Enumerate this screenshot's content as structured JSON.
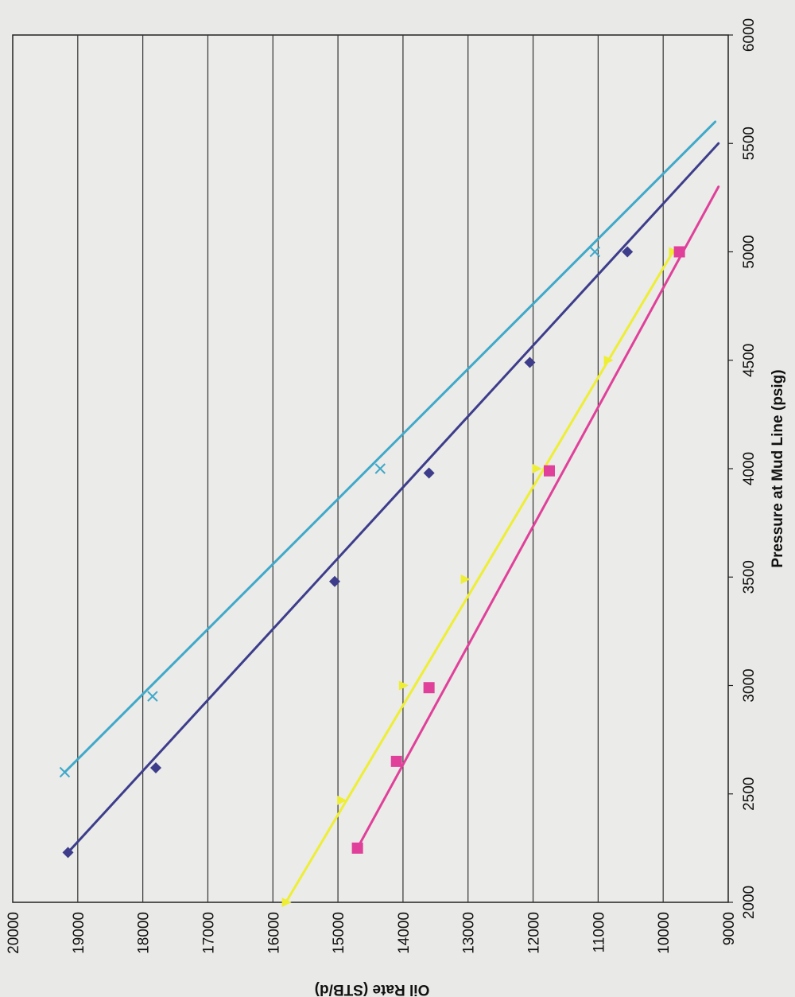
{
  "chart_data": {
    "type": "line",
    "orientation": "rotated-90-clockwise",
    "title": "",
    "xlabel": "Pressure at Mud Line (psig)",
    "ylabel": "Oil Rate (STB/d)",
    "xlim": [
      2000,
      6000
    ],
    "ylim": [
      9000,
      20000
    ],
    "x_ticks": [
      "2000",
      "2500",
      "3000",
      "3500",
      "4000",
      "4500",
      "5000",
      "5500",
      "6000"
    ],
    "y_ticks": [
      "9000",
      "10000",
      "11000",
      "12000",
      "13000",
      "14000",
      "15000",
      "16000",
      "17000",
      "18000",
      "19000",
      "20000"
    ],
    "grid": true,
    "legend": "none",
    "series": [
      {
        "color": "#3fa9c9",
        "marker": "x",
        "points": [
          [
            2600,
            19200
          ],
          [
            2950,
            17850
          ],
          [
            4000,
            14350
          ],
          [
            5000,
            11050
          ]
        ],
        "trend": [
          [
            2600,
            19200
          ],
          [
            5600,
            9200
          ]
        ]
      },
      {
        "color": "#3d3d8c",
        "marker": "diamond",
        "points": [
          [
            2230,
            19150
          ],
          [
            2620,
            17800
          ],
          [
            3480,
            15050
          ],
          [
            3980,
            13600
          ],
          [
            4490,
            12050
          ],
          [
            5000,
            10550
          ]
        ],
        "trend": [
          [
            2230,
            19150
          ],
          [
            5500,
            9150
          ]
        ]
      },
      {
        "color": "#eeee33",
        "marker": "triangle",
        "points": [
          [
            2000,
            15800
          ],
          [
            2470,
            14950
          ],
          [
            3000,
            14000
          ],
          [
            3490,
            13050
          ],
          [
            4000,
            11950
          ],
          [
            4500,
            10850
          ],
          [
            5000,
            9850
          ]
        ],
        "trend": [
          [
            2000,
            15800
          ],
          [
            5000,
            9850
          ]
        ]
      },
      {
        "color": "#e0409a",
        "marker": "square",
        "points": [
          [
            2250,
            14700
          ],
          [
            2650,
            14100
          ],
          [
            2990,
            13600
          ],
          [
            3990,
            11750
          ],
          [
            5000,
            9750
          ]
        ],
        "trend": [
          [
            2250,
            14700
          ],
          [
            5300,
            9150
          ]
        ]
      }
    ]
  }
}
